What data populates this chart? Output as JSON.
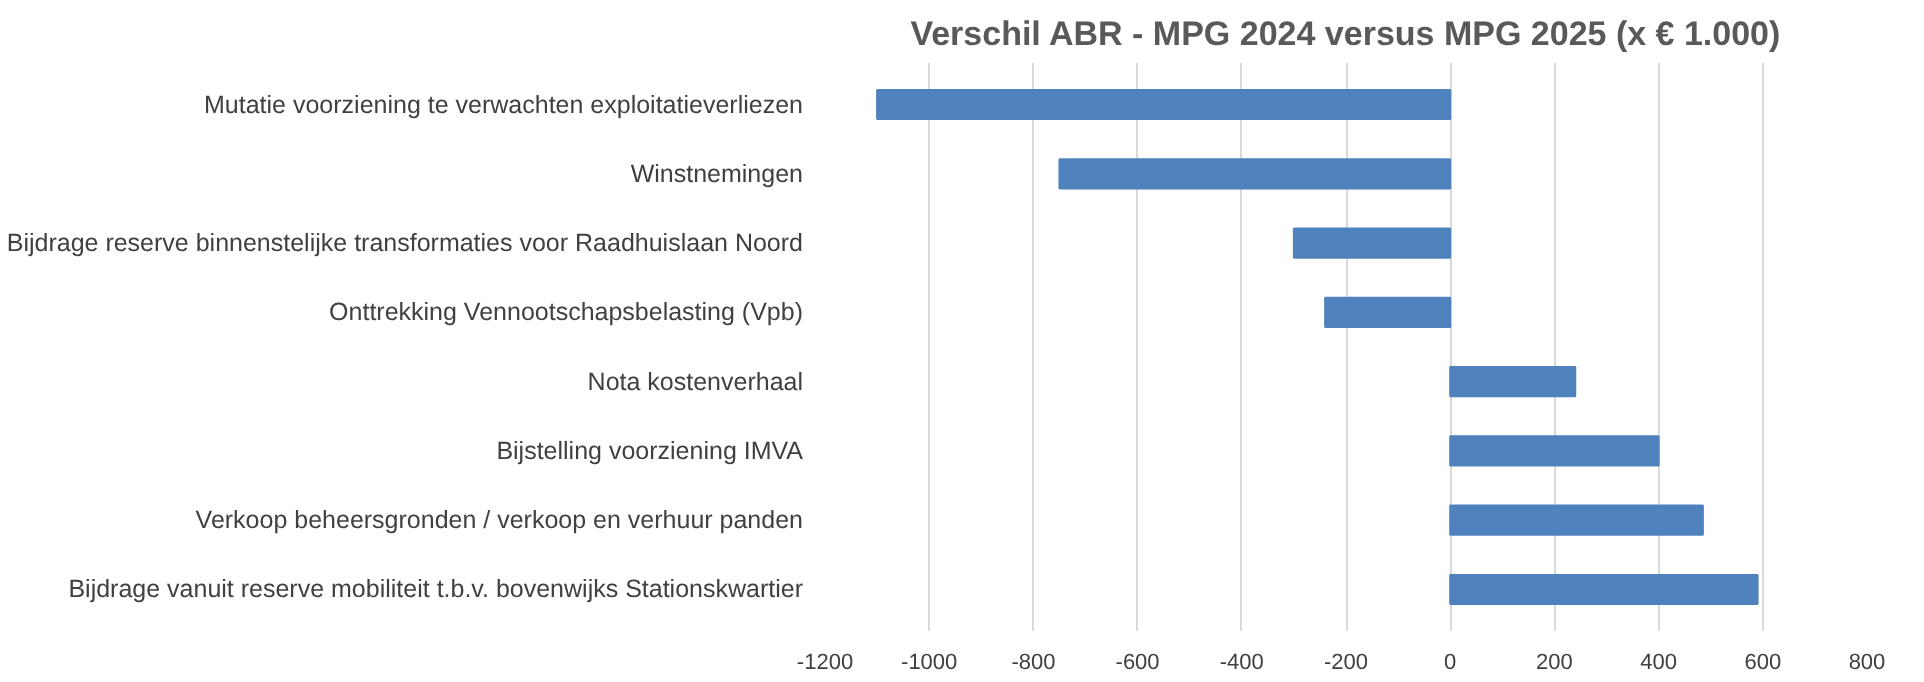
{
  "chart_data": {
    "type": "bar",
    "orientation": "horizontal",
    "title": "Verschil ABR - MPG 2024 versus MPG 2025 (x € 1.000)",
    "categories": [
      "Mutatie voorziening te verwachten exploitatieverliezen",
      "Winstnemingen",
      "Bijdrage reserve binnenstelijke transformaties voor Raadhuislaan Noord",
      "Onttrekking Vennootschapsbelasting (Vpb)",
      "Nota kostenverhaal",
      "Bijstelling voorziening IMVA",
      "Verkoop beheersgronden / verkoop en verhuur panden",
      "Bijdrage vanuit reserve mobiliteit t.b.v. bovenwijks Stationskwartier"
    ],
    "values": [
      -1100,
      -750,
      -300,
      -240,
      240,
      400,
      485,
      590
    ],
    "color": "#4f81bd",
    "xlim": [
      -1200,
      800
    ],
    "xticks": [
      -1200,
      -1000,
      -800,
      -600,
      -400,
      -200,
      0,
      200,
      400,
      600,
      800
    ],
    "grid": "x"
  }
}
